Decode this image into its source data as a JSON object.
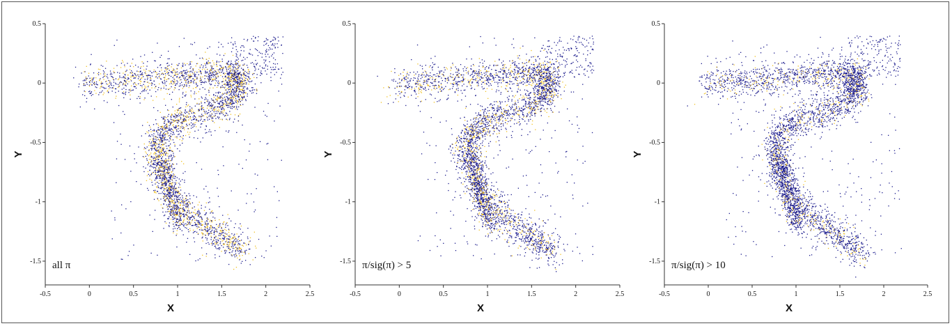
{
  "chart_data": [
    {
      "type": "scatter",
      "panel_label": "all π",
      "xlabel": "X",
      "ylabel": "Y",
      "xlim": [
        -0.5,
        2.5
      ],
      "ylim": [
        -1.7,
        0.5
      ],
      "xticks": [
        "-0.5",
        "0",
        "0.5",
        "1",
        "1.5",
        "2",
        "2.5"
      ],
      "xtick_values": [
        -0.5,
        0,
        0.5,
        1,
        1.5,
        2,
        2.5
      ],
      "yticks": [
        "0.5",
        "0",
        "-0.5",
        "-1",
        "-1.5"
      ],
      "ytick_values": [
        0.5,
        0,
        -0.5,
        -1,
        -1.5
      ],
      "density_color": "#f0c020",
      "point_color": "#1a1a8c",
      "yellow_fraction": 0.55
    },
    {
      "type": "scatter",
      "panel_label": "π/sig(π) > 5",
      "xlabel": "X",
      "ylabel": "Y",
      "xlim": [
        -0.5,
        2.5
      ],
      "ylim": [
        -1.7,
        0.5
      ],
      "xticks": [
        "-0.5",
        "0",
        "0.5",
        "1",
        "1.5",
        "2",
        "2.5"
      ],
      "xtick_values": [
        -0.5,
        0,
        0.5,
        1,
        1.5,
        2,
        2.5
      ],
      "yticks": [
        "0.5",
        "0",
        "-0.5",
        "-1",
        "-1.5"
      ],
      "ytick_values": [
        0.5,
        0,
        -0.5,
        -1,
        -1.5
      ],
      "density_color": "#f0c020",
      "point_color": "#1a1a8c",
      "yellow_fraction": 0.4
    },
    {
      "type": "scatter",
      "panel_label": "π/sig(π) > 10",
      "xlabel": "X",
      "ylabel": "Y",
      "xlim": [
        -0.5,
        2.5
      ],
      "ylim": [
        -1.7,
        0.5
      ],
      "xticks": [
        "-0.5",
        "0",
        "0.5",
        "1",
        "1.5",
        "2",
        "2.5"
      ],
      "xtick_values": [
        -0.5,
        0,
        0.5,
        1,
        1.5,
        2,
        2.5
      ],
      "yticks": [
        "0.5",
        "0",
        "-0.5",
        "-1",
        "-1.5"
      ],
      "ytick_values": [
        0.5,
        0,
        -0.5,
        -1,
        -1.5
      ],
      "density_color": "#f0c020",
      "point_color": "#1a1a8c",
      "yellow_fraction": 0.25
    }
  ]
}
